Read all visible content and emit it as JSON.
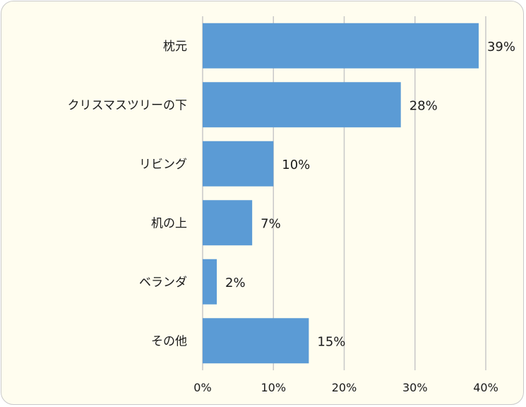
{
  "chart_data": {
    "type": "bar",
    "orientation": "horizontal",
    "categories": [
      "枕元",
      "クリスマスツリーの下",
      "リビング",
      "机の上",
      "ベランダ",
      "その他"
    ],
    "values": [
      39,
      28,
      10,
      7,
      2,
      15
    ],
    "data_labels": [
      "39%",
      "28%",
      "10%",
      "7%",
      "2%",
      "15%"
    ],
    "x_ticks": [
      "0%",
      "10%",
      "20%",
      "30%",
      "40%"
    ],
    "xlim": [
      0,
      40
    ],
    "grid": "vertical",
    "title": "",
    "xlabel": "",
    "ylabel": "",
    "colors": {
      "bar": "#5b9bd5",
      "grid": "#c8c8c8",
      "background": "#fffdef"
    }
  }
}
